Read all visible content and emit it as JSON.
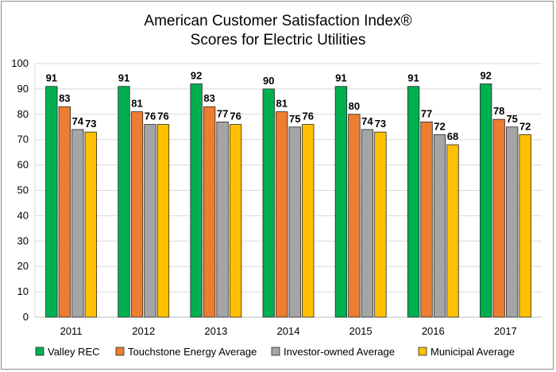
{
  "chart_data": {
    "type": "bar",
    "title": "American Customer Satisfaction Index®",
    "subtitle": "Scores for Electric Utilities",
    "categories": [
      "2011",
      "2012",
      "2013",
      "2014",
      "2015",
      "2016",
      "2017"
    ],
    "series": [
      {
        "name": "Valley REC",
        "color": "#00b050",
        "values": [
          91,
          91,
          92,
          90,
          91,
          91,
          92
        ]
      },
      {
        "name": "Touchstone Energy Average",
        "color": "#ed7d31",
        "values": [
          83,
          81,
          83,
          81,
          80,
          77,
          78
        ]
      },
      {
        "name": "Investor-owned Average",
        "color": "#a5a5a5",
        "values": [
          74,
          76,
          77,
          75,
          74,
          72,
          75
        ]
      },
      {
        "name": "Municipal Average",
        "color": "#ffc000",
        "values": [
          73,
          76,
          76,
          76,
          73,
          68,
          72
        ]
      }
    ],
    "ylim": [
      0,
      100
    ],
    "yticks": [
      0,
      10,
      20,
      30,
      40,
      50,
      60,
      70,
      80,
      90,
      100
    ],
    "grid": true,
    "data_labels": true,
    "legend_position": "bottom"
  }
}
